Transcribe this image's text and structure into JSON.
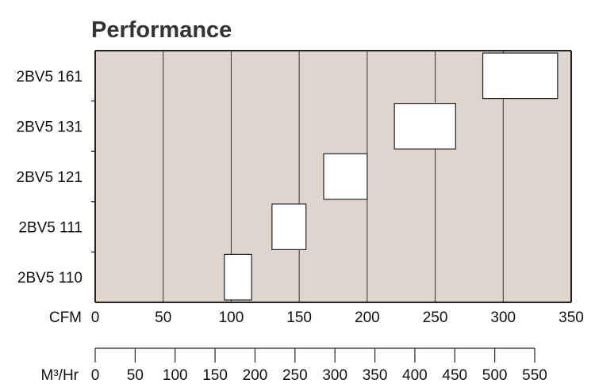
{
  "chart_data": [
    {
      "type": "bar",
      "orientation": "horizontal-range",
      "title": "Performance",
      "categories": [
        "2BV5 110",
        "2BV5 111",
        "2BV5 121",
        "2BV5 131",
        "2BV5 161"
      ],
      "ranges": [
        {
          "category": "2BV5 110",
          "min": 95,
          "max": 115
        },
        {
          "category": "2BV5 111",
          "min": 130,
          "max": 155
        },
        {
          "category": "2BV5 121",
          "min": 168,
          "max": 200
        },
        {
          "category": "2BV5 131",
          "min": 220,
          "max": 265
        },
        {
          "category": "2BV5 161",
          "min": 285,
          "max": 340
        }
      ],
      "xlabel": "CFM",
      "xlim": [
        0,
        350
      ],
      "x_ticks": [
        0,
        50,
        100,
        150,
        200,
        250,
        300,
        350
      ],
      "grid": "vertical",
      "colors": {
        "plot_background": "#ded5ce",
        "bar_fill": "#ffffff",
        "line": "#222222"
      }
    },
    {
      "type": "axis",
      "xlabel": "M³/Hr",
      "xlim": [
        0,
        550
      ],
      "x_ticks": [
        0,
        50,
        100,
        150,
        200,
        250,
        300,
        350,
        400,
        450,
        500,
        550
      ]
    }
  ]
}
